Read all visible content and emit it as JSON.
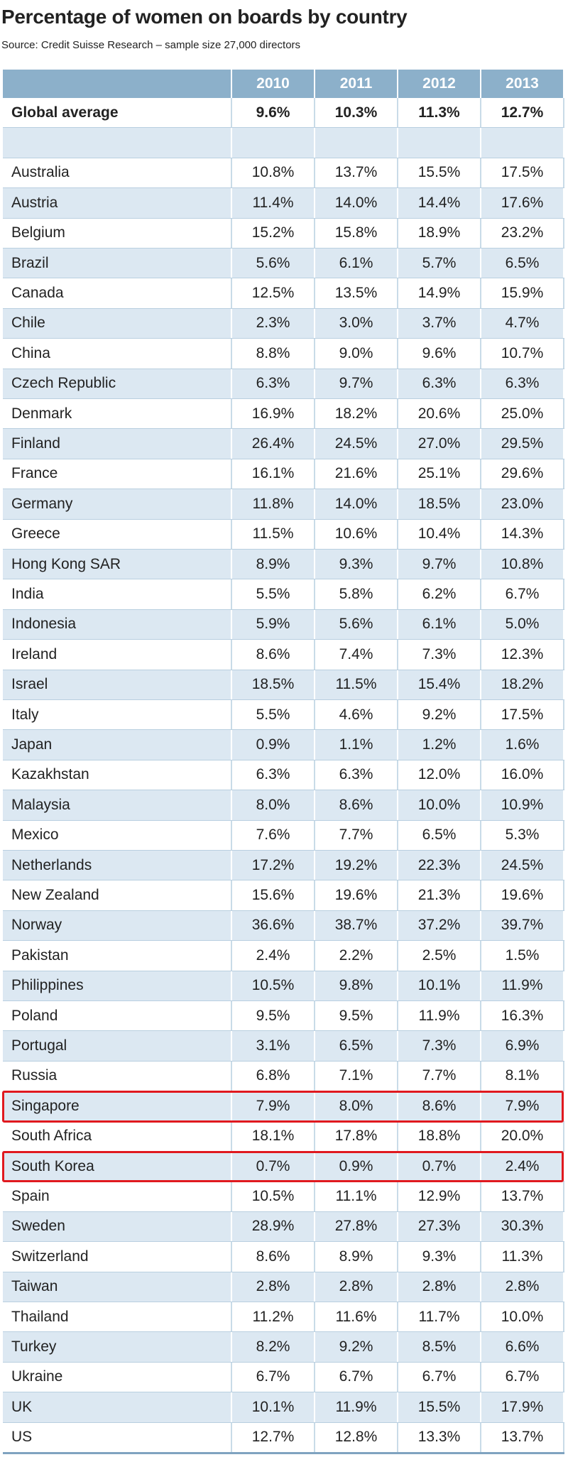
{
  "header": {
    "title": "Percentage of women on boards by country",
    "source": "Source: Credit Suisse Research – sample size 27,000 directors"
  },
  "table": {
    "year_columns": [
      "2010",
      "2011",
      "2012",
      "2013"
    ],
    "global_average": {
      "label": "Global average",
      "values": [
        "9.6%",
        "10.3%",
        "11.3%",
        "12.7%"
      ]
    },
    "rows": [
      [
        "Australia",
        "10.8%",
        "13.7%",
        "15.5%",
        "17.5%"
      ],
      [
        "Austria",
        "11.4%",
        "14.0%",
        "14.4%",
        "17.6%"
      ],
      [
        "Belgium",
        "15.2%",
        "15.8%",
        "18.9%",
        "23.2%"
      ],
      [
        "Brazil",
        "5.6%",
        "6.1%",
        "5.7%",
        "6.5%"
      ],
      [
        "Canada",
        "12.5%",
        "13.5%",
        "14.9%",
        "15.9%"
      ],
      [
        "Chile",
        "2.3%",
        "3.0%",
        "3.7%",
        "4.7%"
      ],
      [
        "China",
        "8.8%",
        "9.0%",
        "9.6%",
        "10.7%"
      ],
      [
        "Czech Republic",
        "6.3%",
        "9.7%",
        "6.3%",
        "6.3%"
      ],
      [
        "Denmark",
        "16.9%",
        "18.2%",
        "20.6%",
        "25.0%"
      ],
      [
        "Finland",
        "26.4%",
        "24.5%",
        "27.0%",
        "29.5%"
      ],
      [
        "France",
        "16.1%",
        "21.6%",
        "25.1%",
        "29.6%"
      ],
      [
        "Germany",
        "11.8%",
        "14.0%",
        "18.5%",
        "23.0%"
      ],
      [
        "Greece",
        "11.5%",
        "10.6%",
        "10.4%",
        "14.3%"
      ],
      [
        "Hong Kong SAR",
        "8.9%",
        "9.3%",
        "9.7%",
        "10.8%"
      ],
      [
        "India",
        "5.5%",
        "5.8%",
        "6.2%",
        "6.7%"
      ],
      [
        "Indonesia",
        "5.9%",
        "5.6%",
        "6.1%",
        "5.0%"
      ],
      [
        "Ireland",
        "8.6%",
        "7.4%",
        "7.3%",
        "12.3%"
      ],
      [
        "Israel",
        "18.5%",
        "11.5%",
        "15.4%",
        "18.2%"
      ],
      [
        "Italy",
        "5.5%",
        "4.6%",
        "9.2%",
        "17.5%"
      ],
      [
        "Japan",
        "0.9%",
        "1.1%",
        "1.2%",
        "1.6%"
      ],
      [
        "Kazakhstan",
        "6.3%",
        "6.3%",
        "12.0%",
        "16.0%"
      ],
      [
        "Malaysia",
        "8.0%",
        "8.6%",
        "10.0%",
        "10.9%"
      ],
      [
        "Mexico",
        "7.6%",
        "7.7%",
        "6.5%",
        "5.3%"
      ],
      [
        "Netherlands",
        "17.2%",
        "19.2%",
        "22.3%",
        "24.5%"
      ],
      [
        "New Zealand",
        "15.6%",
        "19.6%",
        "21.3%",
        "19.6%"
      ],
      [
        "Norway",
        "36.6%",
        "38.7%",
        "37.2%",
        "39.7%"
      ],
      [
        "Pakistan",
        "2.4%",
        "2.2%",
        "2.5%",
        "1.5%"
      ],
      [
        "Philippines",
        "10.5%",
        "9.8%",
        "10.1%",
        "11.9%"
      ],
      [
        "Poland",
        "9.5%",
        "9.5%",
        "11.9%",
        "16.3%"
      ],
      [
        "Portugal",
        "3.1%",
        "6.5%",
        "7.3%",
        "6.9%"
      ],
      [
        "Russia",
        "6.8%",
        "7.1%",
        "7.7%",
        "8.1%"
      ],
      [
        "Singapore",
        "7.9%",
        "8.0%",
        "8.6%",
        "7.9%"
      ],
      [
        "South Africa",
        "18.1%",
        "17.8%",
        "18.8%",
        "20.0%"
      ],
      [
        "South Korea",
        "0.7%",
        "0.9%",
        "0.7%",
        "2.4%"
      ],
      [
        "Spain",
        "10.5%",
        "11.1%",
        "12.9%",
        "13.7%"
      ],
      [
        "Sweden",
        "28.9%",
        "27.8%",
        "27.3%",
        "30.3%"
      ],
      [
        "Switzerland",
        "8.6%",
        "8.9%",
        "9.3%",
        "11.3%"
      ],
      [
        "Taiwan",
        "2.8%",
        "2.8%",
        "2.8%",
        "2.8%"
      ],
      [
        "Thailand",
        "11.2%",
        "11.6%",
        "11.7%",
        "10.0%"
      ],
      [
        "Turkey",
        "8.2%",
        "9.2%",
        "8.5%",
        "6.6%"
      ],
      [
        "Ukraine",
        "6.7%",
        "6.7%",
        "6.7%",
        "6.7%"
      ],
      [
        "UK",
        "10.1%",
        "11.9%",
        "15.5%",
        "17.9%"
      ],
      [
        "US",
        "12.7%",
        "12.8%",
        "13.3%",
        "13.7%"
      ]
    ],
    "highlighted_rows": [
      31,
      33
    ]
  }
}
